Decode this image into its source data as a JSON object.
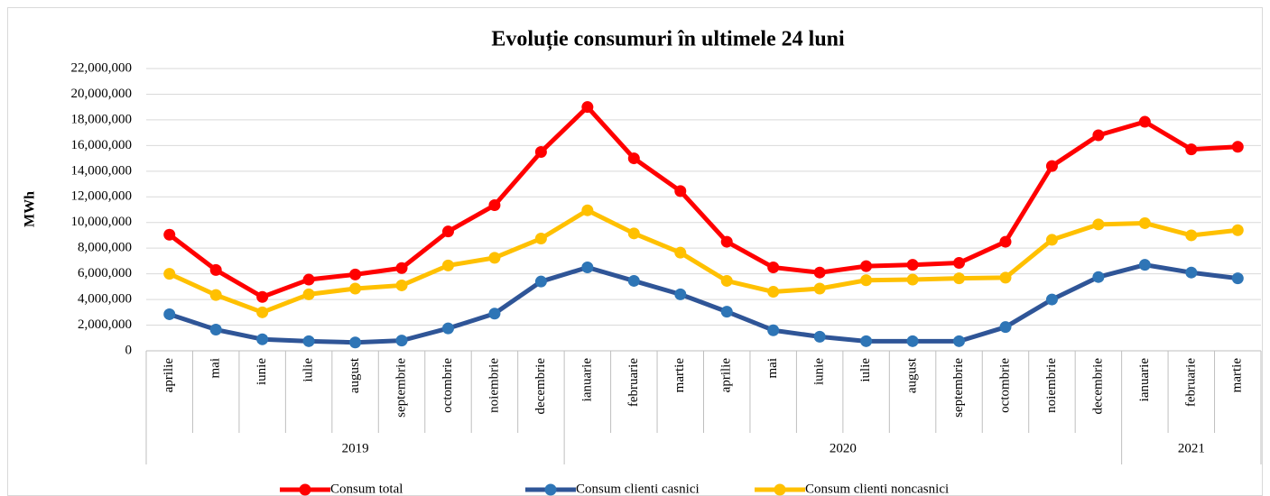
{
  "chart_data": {
    "type": "line",
    "title": "Evoluție consumuri în ultimele 24 luni",
    "y_label": "MWh",
    "groups": [
      {
        "name": "2019",
        "categories": [
          "aprilie",
          "mai",
          "iunie",
          "iulie",
          "august",
          "septembrie",
          "octombrie",
          "noiembrie",
          "decembrie"
        ]
      },
      {
        "name": "2020",
        "categories": [
          "ianuarie",
          "februarie",
          "martie",
          "aprilie",
          "mai",
          "iunie",
          "iulie",
          "august",
          "septembrie",
          "octombrie",
          "noiembrie",
          "decembrie"
        ]
      },
      {
        "name": "2021",
        "categories": [
          "ianuarie",
          "februarie",
          "martie"
        ]
      }
    ],
    "series": [
      {
        "name": "Consum total",
        "color": "#ff0000",
        "values": [
          9050000,
          6300000,
          4200000,
          5550000,
          5950000,
          6450000,
          9300000,
          11350000,
          15500000,
          19000000,
          15000000,
          12450000,
          8500000,
          6500000,
          6100000,
          6600000,
          6700000,
          6850000,
          8500000,
          14400000,
          16800000,
          17850000,
          15700000,
          15900000
        ]
      },
      {
        "name": "Consum clienti casnici",
        "color": "#2f5597",
        "marker_color": "#2e75b6",
        "values": [
          2850000,
          1650000,
          900000,
          750000,
          650000,
          800000,
          1750000,
          2900000,
          5400000,
          6500000,
          5450000,
          4400000,
          3050000,
          1600000,
          1100000,
          750000,
          750000,
          750000,
          1850000,
          4000000,
          5750000,
          6700000,
          6100000,
          5650000
        ]
      },
      {
        "name": "Consum clienti noncasnici",
        "color": "#ffc000",
        "values": [
          6000000,
          4350000,
          3000000,
          4400000,
          4850000,
          5100000,
          6650000,
          7250000,
          8750000,
          10950000,
          9150000,
          7650000,
          5450000,
          4600000,
          4850000,
          5500000,
          5550000,
          5650000,
          5700000,
          8650000,
          9850000,
          9950000,
          9000000,
          9400000
        ]
      }
    ],
    "ylim": [
      0,
      22000000
    ],
    "yticks": [
      0,
      {
        "value": 2000000,
        "label": "2,000,000"
      },
      {
        "value": 4000000,
        "label": "4,000,000"
      },
      {
        "value": 6000000,
        "label": "6,000,000"
      },
      {
        "value": 8000000,
        "label": "8,000,000"
      },
      {
        "value": 10000000,
        "label": "10,000,000"
      },
      {
        "value": 12000000,
        "label": "12,000,000"
      },
      {
        "value": 14000000,
        "label": "14,000,000"
      },
      {
        "value": 16000000,
        "label": "16,000,000"
      },
      {
        "value": 18000000,
        "label": "18,000,000"
      },
      {
        "value": 20000000,
        "label": "20,000,000"
      },
      {
        "value": 22000000,
        "label": "22,000,000"
      }
    ],
    "grid": true,
    "legend": "bottom"
  }
}
